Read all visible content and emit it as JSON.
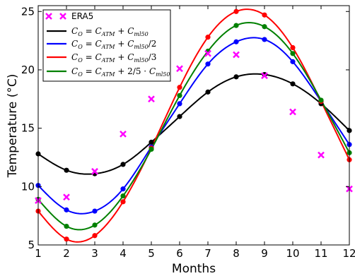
{
  "chart_data": {
    "type": "line",
    "xlabel": "Months",
    "ylabel": "Temperature (°C)",
    "xlim": [
      1,
      12
    ],
    "ylim": [
      5,
      25.5
    ],
    "xticks": [
      "1",
      "2",
      "3",
      "4",
      "5",
      "6",
      "7",
      "8",
      "9",
      "10",
      "11",
      "12"
    ],
    "yticks": [
      "5",
      "10",
      "15",
      "20",
      "25"
    ],
    "grid": false,
    "legend_position": "top-left",
    "x": [
      1,
      2,
      3,
      4,
      5,
      6,
      7,
      8,
      9,
      10,
      11,
      12
    ],
    "scatter": {
      "name": "ERA5",
      "color": "#ff00ff",
      "marker": "x",
      "values": [
        8.8,
        9.1,
        11.3,
        14.5,
        17.5,
        20.1,
        21.4,
        21.3,
        19.5,
        16.4,
        12.7,
        9.8
      ]
    },
    "series": [
      {
        "name": "C_O = C_ATM + C_ml50",
        "color": "#000000",
        "values": [
          12.8,
          11.4,
          11.1,
          11.9,
          13.8,
          16.0,
          18.1,
          19.4,
          19.6,
          18.8,
          17.1,
          14.8
        ]
      },
      {
        "name": "C_O = C_ATM + C_ml50/2",
        "color": "#0000ff",
        "values": [
          10.1,
          8.0,
          7.9,
          9.8,
          13.4,
          17.1,
          20.5,
          22.4,
          22.6,
          20.7,
          17.3,
          13.6
        ]
      },
      {
        "name": "C_O = C_ATM + C_ml50/3",
        "color": "#ff0000",
        "values": [
          7.9,
          5.5,
          5.8,
          8.7,
          13.3,
          18.5,
          22.8,
          25.0,
          24.7,
          21.9,
          17.3,
          12.3
        ]
      },
      {
        "name": "C_O = C_ATM + 2/5 · C_ml50",
        "color": "#008000",
        "values": [
          8.9,
          6.6,
          6.7,
          9.2,
          13.2,
          17.8,
          21.6,
          23.8,
          23.7,
          21.4,
          17.4,
          12.9
        ]
      }
    ]
  }
}
